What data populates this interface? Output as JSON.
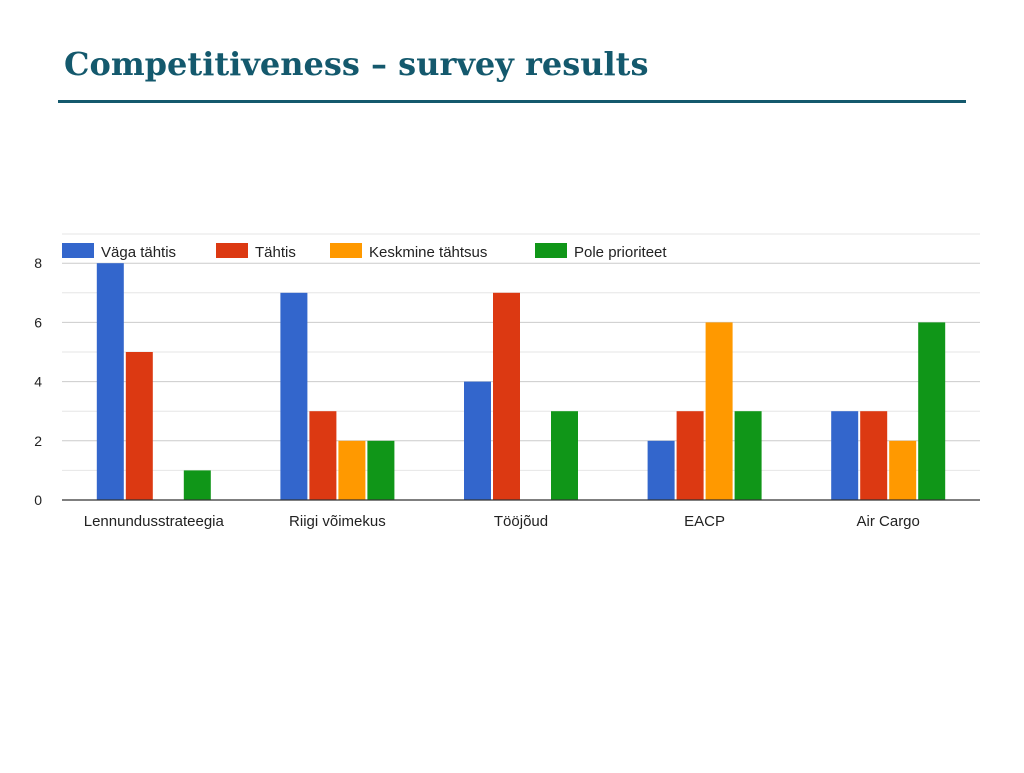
{
  "slide": {
    "title": "Competitiveness – survey results"
  },
  "colors": {
    "title": "#14596d",
    "series": [
      "#3366cc",
      "#dc3912",
      "#ff9900",
      "#109618"
    ]
  },
  "chart_data": {
    "type": "bar",
    "title": "",
    "xlabel": "",
    "ylabel": "",
    "categories": [
      "Lennundusstrateegia",
      "Riigi võimekus",
      "Tööjõud",
      "EACP",
      "Air Cargo"
    ],
    "series": [
      {
        "name": "Väga tähtis",
        "color": "#3366cc",
        "values": [
          8,
          7,
          4,
          2,
          3
        ]
      },
      {
        "name": "Tähtis",
        "color": "#dc3912",
        "values": [
          5,
          3,
          7,
          3,
          3
        ]
      },
      {
        "name": "Keskmine tähtsus",
        "color": "#ff9900",
        "values": [
          0,
          2,
          0,
          6,
          2
        ]
      },
      {
        "name": "Pole prioriteet",
        "color": "#109618",
        "values": [
          1,
          2,
          3,
          3,
          6
        ]
      }
    ],
    "ylim": [
      0,
      8
    ],
    "yticks": [
      "0",
      "2",
      "4",
      "6",
      "8"
    ],
    "grid": true,
    "legend": "top-left"
  }
}
